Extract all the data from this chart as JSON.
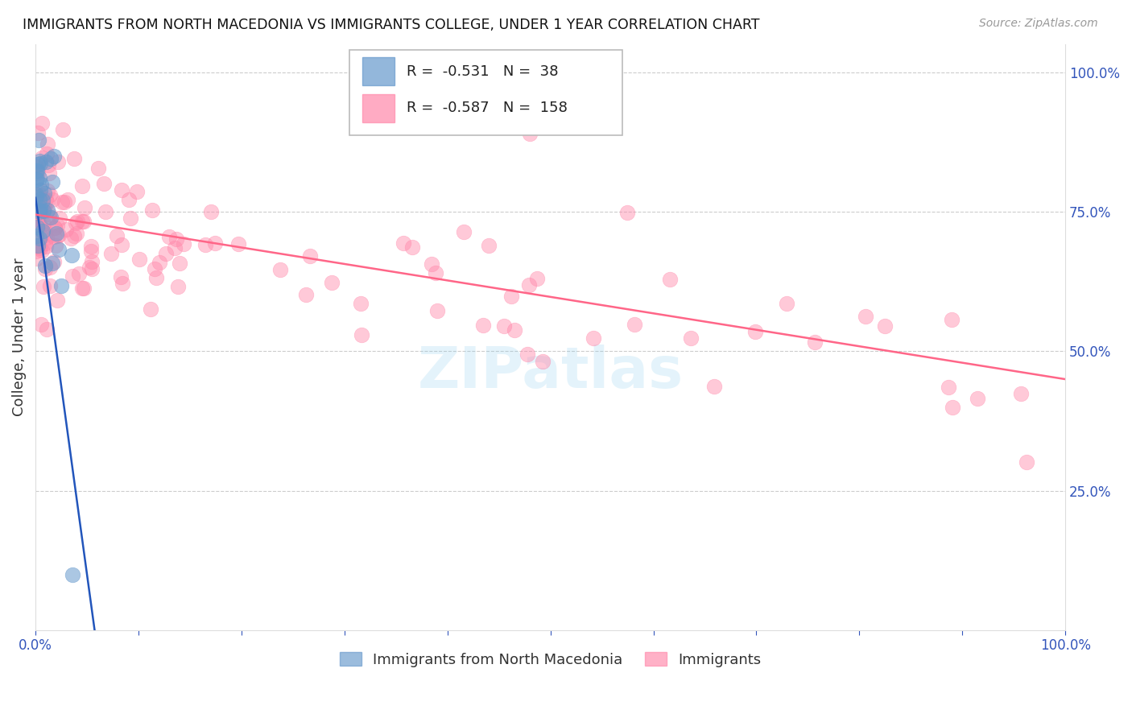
{
  "title": "IMMIGRANTS FROM NORTH MACEDONIA VS IMMIGRANTS COLLEGE, UNDER 1 YEAR CORRELATION CHART",
  "source": "Source: ZipAtlas.com",
  "ylabel": "College, Under 1 year",
  "legend_blue_r": "-0.531",
  "legend_blue_n": "38",
  "legend_pink_r": "-0.587",
  "legend_pink_n": "158",
  "legend_label_blue": "Immigrants from North Macedonia",
  "legend_label_pink": "Immigrants",
  "blue_color": "#6699CC",
  "pink_color": "#FF88AA",
  "blue_line_color": "#2255BB",
  "pink_line_color": "#FF6688",
  "blue_scatter_alpha": 0.55,
  "pink_scatter_alpha": 0.45,
  "scatter_size": 180
}
